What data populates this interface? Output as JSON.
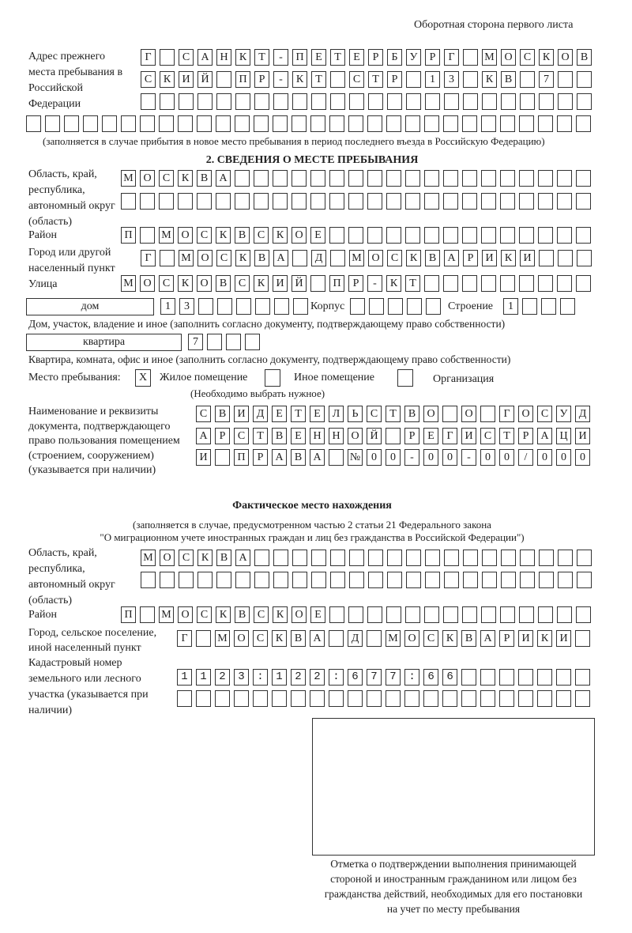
{
  "header": {
    "side_note": "Оборотная сторона первого листа"
  },
  "prev_address": {
    "label": "Адрес прежнего места пребывания в Российской Федерации",
    "rows": [
      "Г САНКТ-ПЕТЕРБУРГ МОСКОВ",
      "СКИЙ ПР-КТ СТР 13 КВ 7",
      "",
      ""
    ],
    "note": "(заполняется в случае прибытия в новое место пребывания в период последнего въезда в Российскую Федерацию)"
  },
  "section2": {
    "title": "2. СВЕДЕНИЯ О МЕСТЕ ПРЕБЫВАНИЯ",
    "region_label": "Область, край, республика, автономный округ (область)",
    "region_rows": [
      "МОСКВА",
      ""
    ],
    "district_label": "Район",
    "district": "П МОСКВСКОЕ",
    "city_label": "Город или другой населенный пункт",
    "city": "Г МОСКВА Д МОСКВАРИКИ",
    "street_label": "Улица",
    "street": "МОСКОВСКИЙ ПР-КТ",
    "house_type": "дом",
    "house_number": "13",
    "korpus_label": "Корпус",
    "korpus": "",
    "building_label": "Строение",
    "building": "1",
    "house_note": "Дом, участок, владение и иное (заполнить согласно документу, подтверждающему право собственности)",
    "apt_type": "квартира",
    "apt_number": "7",
    "apt_note": "Квартира, комната, офис и иное (заполнить согласно документу, подтверждающему право собственности)",
    "stay_place_label": "Место пребывания:",
    "options": [
      {
        "label": "Жилое помещение",
        "mark": "X"
      },
      {
        "label": "Иное помещение",
        "mark": ""
      },
      {
        "label": "Организация",
        "mark": ""
      }
    ],
    "choose_note": "(Необходимо выбрать нужное)",
    "doc_label": "Наименование и реквизиты документа, подтверждающего право пользования помещением (строением, сооружением) (указывается при наличии)",
    "doc_rows": [
      "СВИДЕТЕЛЬСТВО О ГОСУД",
      "АРСТВЕННОЙ РЕГИСТРАЦИ",
      "И ПРАВА №00-00-00/000"
    ]
  },
  "actual": {
    "title": "Фактическое место нахождения",
    "note1": "(заполняется в случае, предусмотренном частью 2 статьи 21 Федерального закона",
    "note2": "\"О миграционном учете иностранных граждан и лиц без гражданства в Российской Федерации\")",
    "region_label": "Область, край, республика, автономный округ (область)",
    "region_rows": [
      "МОСКВА",
      ""
    ],
    "district_label": "Район",
    "district": "П МОСКВСКОЕ",
    "city_label": "Город, сельское поселение, иной населенный пункт",
    "city": "Г МОСКВА Д МОСКВАРИКИ",
    "cadastral_label": "Кадастровый номер земельного или лесного участка (указывается при наличии)",
    "cadastral_rows": [
      "1123:122:677:66",
      ""
    ]
  },
  "stamp": {
    "caption": "Отметка о подтверждении выполнения принимающей стороной и иностранным гражданином или лицом без гражданства действий, необходимых для его постановки на учет по месту пребывания"
  }
}
